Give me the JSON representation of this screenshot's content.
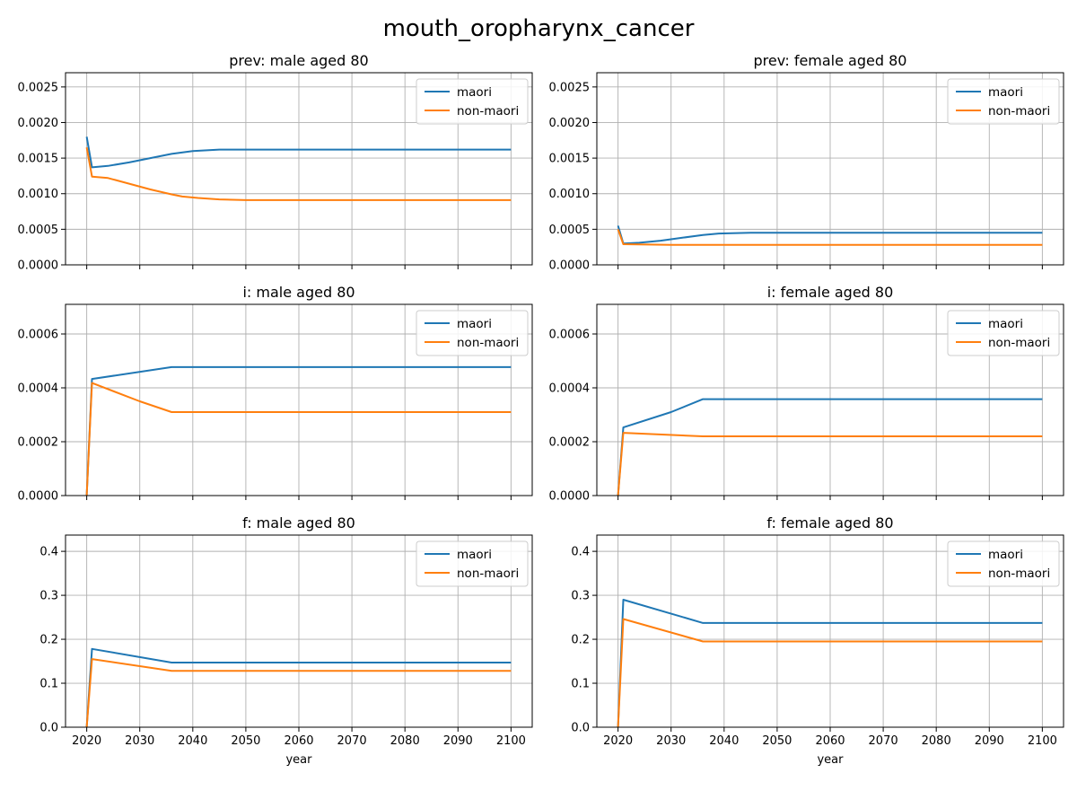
{
  "suptitle": "mouth_oropharynx_cancer",
  "colors": {
    "maori": "#1f77b4",
    "non_maori": "#ff7f0e",
    "grid": "#b0b0b0"
  },
  "chart_data": [
    {
      "type": "line",
      "title": "prev: male aged 80",
      "xlabel": "",
      "ylabel": "",
      "xlim": [
        2016,
        2104
      ],
      "ylim": [
        0,
        0.0027
      ],
      "xticks": [
        2020,
        2030,
        2040,
        2050,
        2060,
        2070,
        2080,
        2090,
        2100
      ],
      "show_xticklabels": false,
      "yticks": [
        0.0,
        0.0005,
        0.001,
        0.0015,
        0.002,
        0.0025
      ],
      "ytick_labels": [
        "0.0000",
        "0.0005",
        "0.0010",
        "0.0015",
        "0.0020",
        "0.0025"
      ],
      "grid": true,
      "legend": "upper right",
      "series": [
        {
          "name": "maori",
          "x": [
            2020,
            2021,
            2024,
            2028,
            2032,
            2036,
            2040,
            2045,
            2050,
            2100
          ],
          "values": [
            0.0018,
            0.00137,
            0.00139,
            0.00144,
            0.0015,
            0.00156,
            0.0016,
            0.00162,
            0.00162,
            0.00162
          ]
        },
        {
          "name": "non-maori",
          "x": [
            2020,
            2021,
            2024,
            2028,
            2032,
            2036,
            2038,
            2041,
            2045,
            2050,
            2100
          ],
          "values": [
            0.00165,
            0.00124,
            0.00122,
            0.00114,
            0.00106,
            0.00099,
            0.00096,
            0.00094,
            0.00092,
            0.00091,
            0.00091
          ]
        }
      ]
    },
    {
      "type": "line",
      "title": "prev: female aged 80",
      "xlabel": "",
      "ylabel": "",
      "xlim": [
        2016,
        2104
      ],
      "ylim": [
        0,
        0.0027
      ],
      "xticks": [
        2020,
        2030,
        2040,
        2050,
        2060,
        2070,
        2080,
        2090,
        2100
      ],
      "show_xticklabels": false,
      "yticks": [
        0.0,
        0.0005,
        0.001,
        0.0015,
        0.002,
        0.0025
      ],
      "ytick_labels": [
        "0.0000",
        "0.0005",
        "0.0010",
        "0.0015",
        "0.0020",
        "0.0025"
      ],
      "grid": true,
      "legend": "upper right",
      "series": [
        {
          "name": "maori",
          "x": [
            2020,
            2021,
            2024,
            2028,
            2032,
            2036,
            2039,
            2045,
            2100
          ],
          "values": [
            0.00055,
            0.0003,
            0.00031,
            0.00034,
            0.00038,
            0.00042,
            0.00044,
            0.00045,
            0.00045
          ]
        },
        {
          "name": "non-maori",
          "x": [
            2020,
            2021,
            2030,
            2036,
            2100
          ],
          "values": [
            0.0005,
            0.00029,
            0.00028,
            0.00028,
            0.00028
          ]
        }
      ]
    },
    {
      "type": "line",
      "title": "i: male aged 80",
      "xlabel": "",
      "ylabel": "",
      "xlim": [
        2016,
        2104
      ],
      "ylim": [
        0,
        0.00071
      ],
      "xticks": [
        2020,
        2030,
        2040,
        2050,
        2060,
        2070,
        2080,
        2090,
        2100
      ],
      "show_xticklabels": false,
      "yticks": [
        0.0,
        0.0002,
        0.0004,
        0.0006
      ],
      "ytick_labels": [
        "0.0000",
        "0.0002",
        "0.0004",
        "0.0006"
      ],
      "grid": true,
      "legend": "upper right",
      "series": [
        {
          "name": "maori",
          "x": [
            2020,
            2021,
            2036,
            2100
          ],
          "values": [
            0.0,
            0.000433,
            0.000477,
            0.000477
          ]
        },
        {
          "name": "non-maori",
          "x": [
            2020,
            2021,
            2030,
            2036,
            2100
          ],
          "values": [
            0.0,
            0.000418,
            0.00035,
            0.00031,
            0.00031
          ]
        }
      ]
    },
    {
      "type": "line",
      "title": "i: female aged 80",
      "xlabel": "",
      "ylabel": "",
      "xlim": [
        2016,
        2104
      ],
      "ylim": [
        0,
        0.00071
      ],
      "xticks": [
        2020,
        2030,
        2040,
        2050,
        2060,
        2070,
        2080,
        2090,
        2100
      ],
      "show_xticklabels": false,
      "yticks": [
        0.0,
        0.0002,
        0.0004,
        0.0006
      ],
      "ytick_labels": [
        "0.0000",
        "0.0002",
        "0.0004",
        "0.0006"
      ],
      "grid": true,
      "legend": "upper right",
      "series": [
        {
          "name": "maori",
          "x": [
            2020,
            2021,
            2030,
            2036,
            2100
          ],
          "values": [
            0.0,
            0.000253,
            0.00031,
            0.000358,
            0.000358
          ]
        },
        {
          "name": "non-maori",
          "x": [
            2020,
            2021,
            2036,
            2100
          ],
          "values": [
            0.0,
            0.000233,
            0.00022,
            0.00022
          ]
        }
      ]
    },
    {
      "type": "line",
      "title": "f: male aged 80",
      "xlabel": "year",
      "ylabel": "",
      "xlim": [
        2016,
        2104
      ],
      "ylim": [
        0,
        0.437
      ],
      "xticks": [
        2020,
        2030,
        2040,
        2050,
        2060,
        2070,
        2080,
        2090,
        2100
      ],
      "show_xticklabels": true,
      "yticks": [
        0.0,
        0.1,
        0.2,
        0.3,
        0.4
      ],
      "ytick_labels": [
        "0.0",
        "0.1",
        "0.2",
        "0.3",
        "0.4"
      ],
      "grid": true,
      "legend": "upper right",
      "series": [
        {
          "name": "maori",
          "x": [
            2020,
            2021,
            2036,
            2100
          ],
          "values": [
            0.0,
            0.178,
            0.147,
            0.147
          ]
        },
        {
          "name": "non-maori",
          "x": [
            2020,
            2021,
            2036,
            2100
          ],
          "values": [
            0.0,
            0.155,
            0.128,
            0.128
          ]
        }
      ]
    },
    {
      "type": "line",
      "title": "f: female aged 80",
      "xlabel": "year",
      "ylabel": "",
      "xlim": [
        2016,
        2104
      ],
      "ylim": [
        0,
        0.437
      ],
      "xticks": [
        2020,
        2030,
        2040,
        2050,
        2060,
        2070,
        2080,
        2090,
        2100
      ],
      "show_xticklabels": true,
      "yticks": [
        0.0,
        0.1,
        0.2,
        0.3,
        0.4
      ],
      "ytick_labels": [
        "0.0",
        "0.1",
        "0.2",
        "0.3",
        "0.4"
      ],
      "grid": true,
      "legend": "upper right",
      "series": [
        {
          "name": "maori",
          "x": [
            2020,
            2021,
            2036,
            2100
          ],
          "values": [
            0.0,
            0.29,
            0.237,
            0.237
          ]
        },
        {
          "name": "non-maori",
          "x": [
            2020,
            2021,
            2036,
            2100
          ],
          "values": [
            0.0,
            0.246,
            0.195,
            0.195
          ]
        }
      ]
    }
  ]
}
